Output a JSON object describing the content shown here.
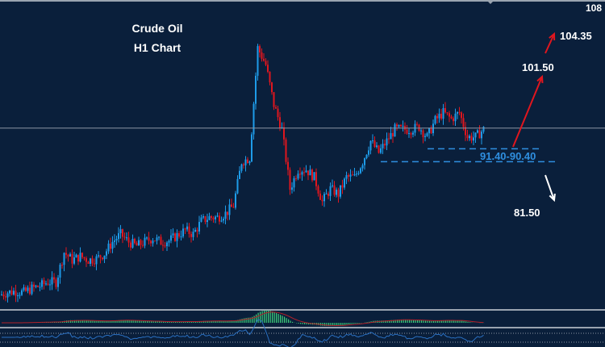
{
  "chart_data": {
    "type": "candlestick",
    "title": "Crude Oil",
    "subtitle": "H1 Chart",
    "ylim": [
      79.2,
      102.9
    ],
    "axis_label_top": "108",
    "closes": [
      80.1,
      80.3,
      80.4,
      80.3,
      80.6,
      80.8,
      81.1,
      81.1,
      83.4,
      82.8,
      83.1,
      82.8,
      82.9,
      83.3,
      84.2,
      84.8,
      84.2,
      83.9,
      84.2,
      84.5,
      84.2,
      84.3,
      84.7,
      85.1,
      84.8,
      85.8,
      86.1,
      86.1,
      86.4,
      87.0,
      90.4,
      90.7,
      99.2,
      97.9,
      94.8,
      92.9,
      88.3,
      89.8,
      89.8,
      89.2,
      87.3,
      88.3,
      87.9,
      89.2,
      89.2,
      90.4,
      92.0,
      91.1,
      92.0,
      92.9,
      92.9,
      92.9,
      93.1,
      92.3,
      93.6,
      94.2,
      93.7,
      94.2,
      92.3,
      92.3,
      92.9
    ],
    "current_price": 93.0,
    "support_zone": {
      "label": "91.40-90.40",
      "upper": 91.4,
      "lower": 90.4
    },
    "targets_up": [
      "101.50",
      "104.35"
    ],
    "target_down": "81.50",
    "colors": {
      "bull": "#1e9be8",
      "bear": "#e0161e",
      "up_arrow": "#e0161e",
      "down_arrow": "#ffffff",
      "support": "#2f8fe0",
      "histogram": "#3ecf7a",
      "signal": "#b0202a",
      "oscillator": "#2a6fc0",
      "background": "#0a1f3b"
    },
    "indicators": [
      "histogram",
      "oscillator"
    ]
  }
}
